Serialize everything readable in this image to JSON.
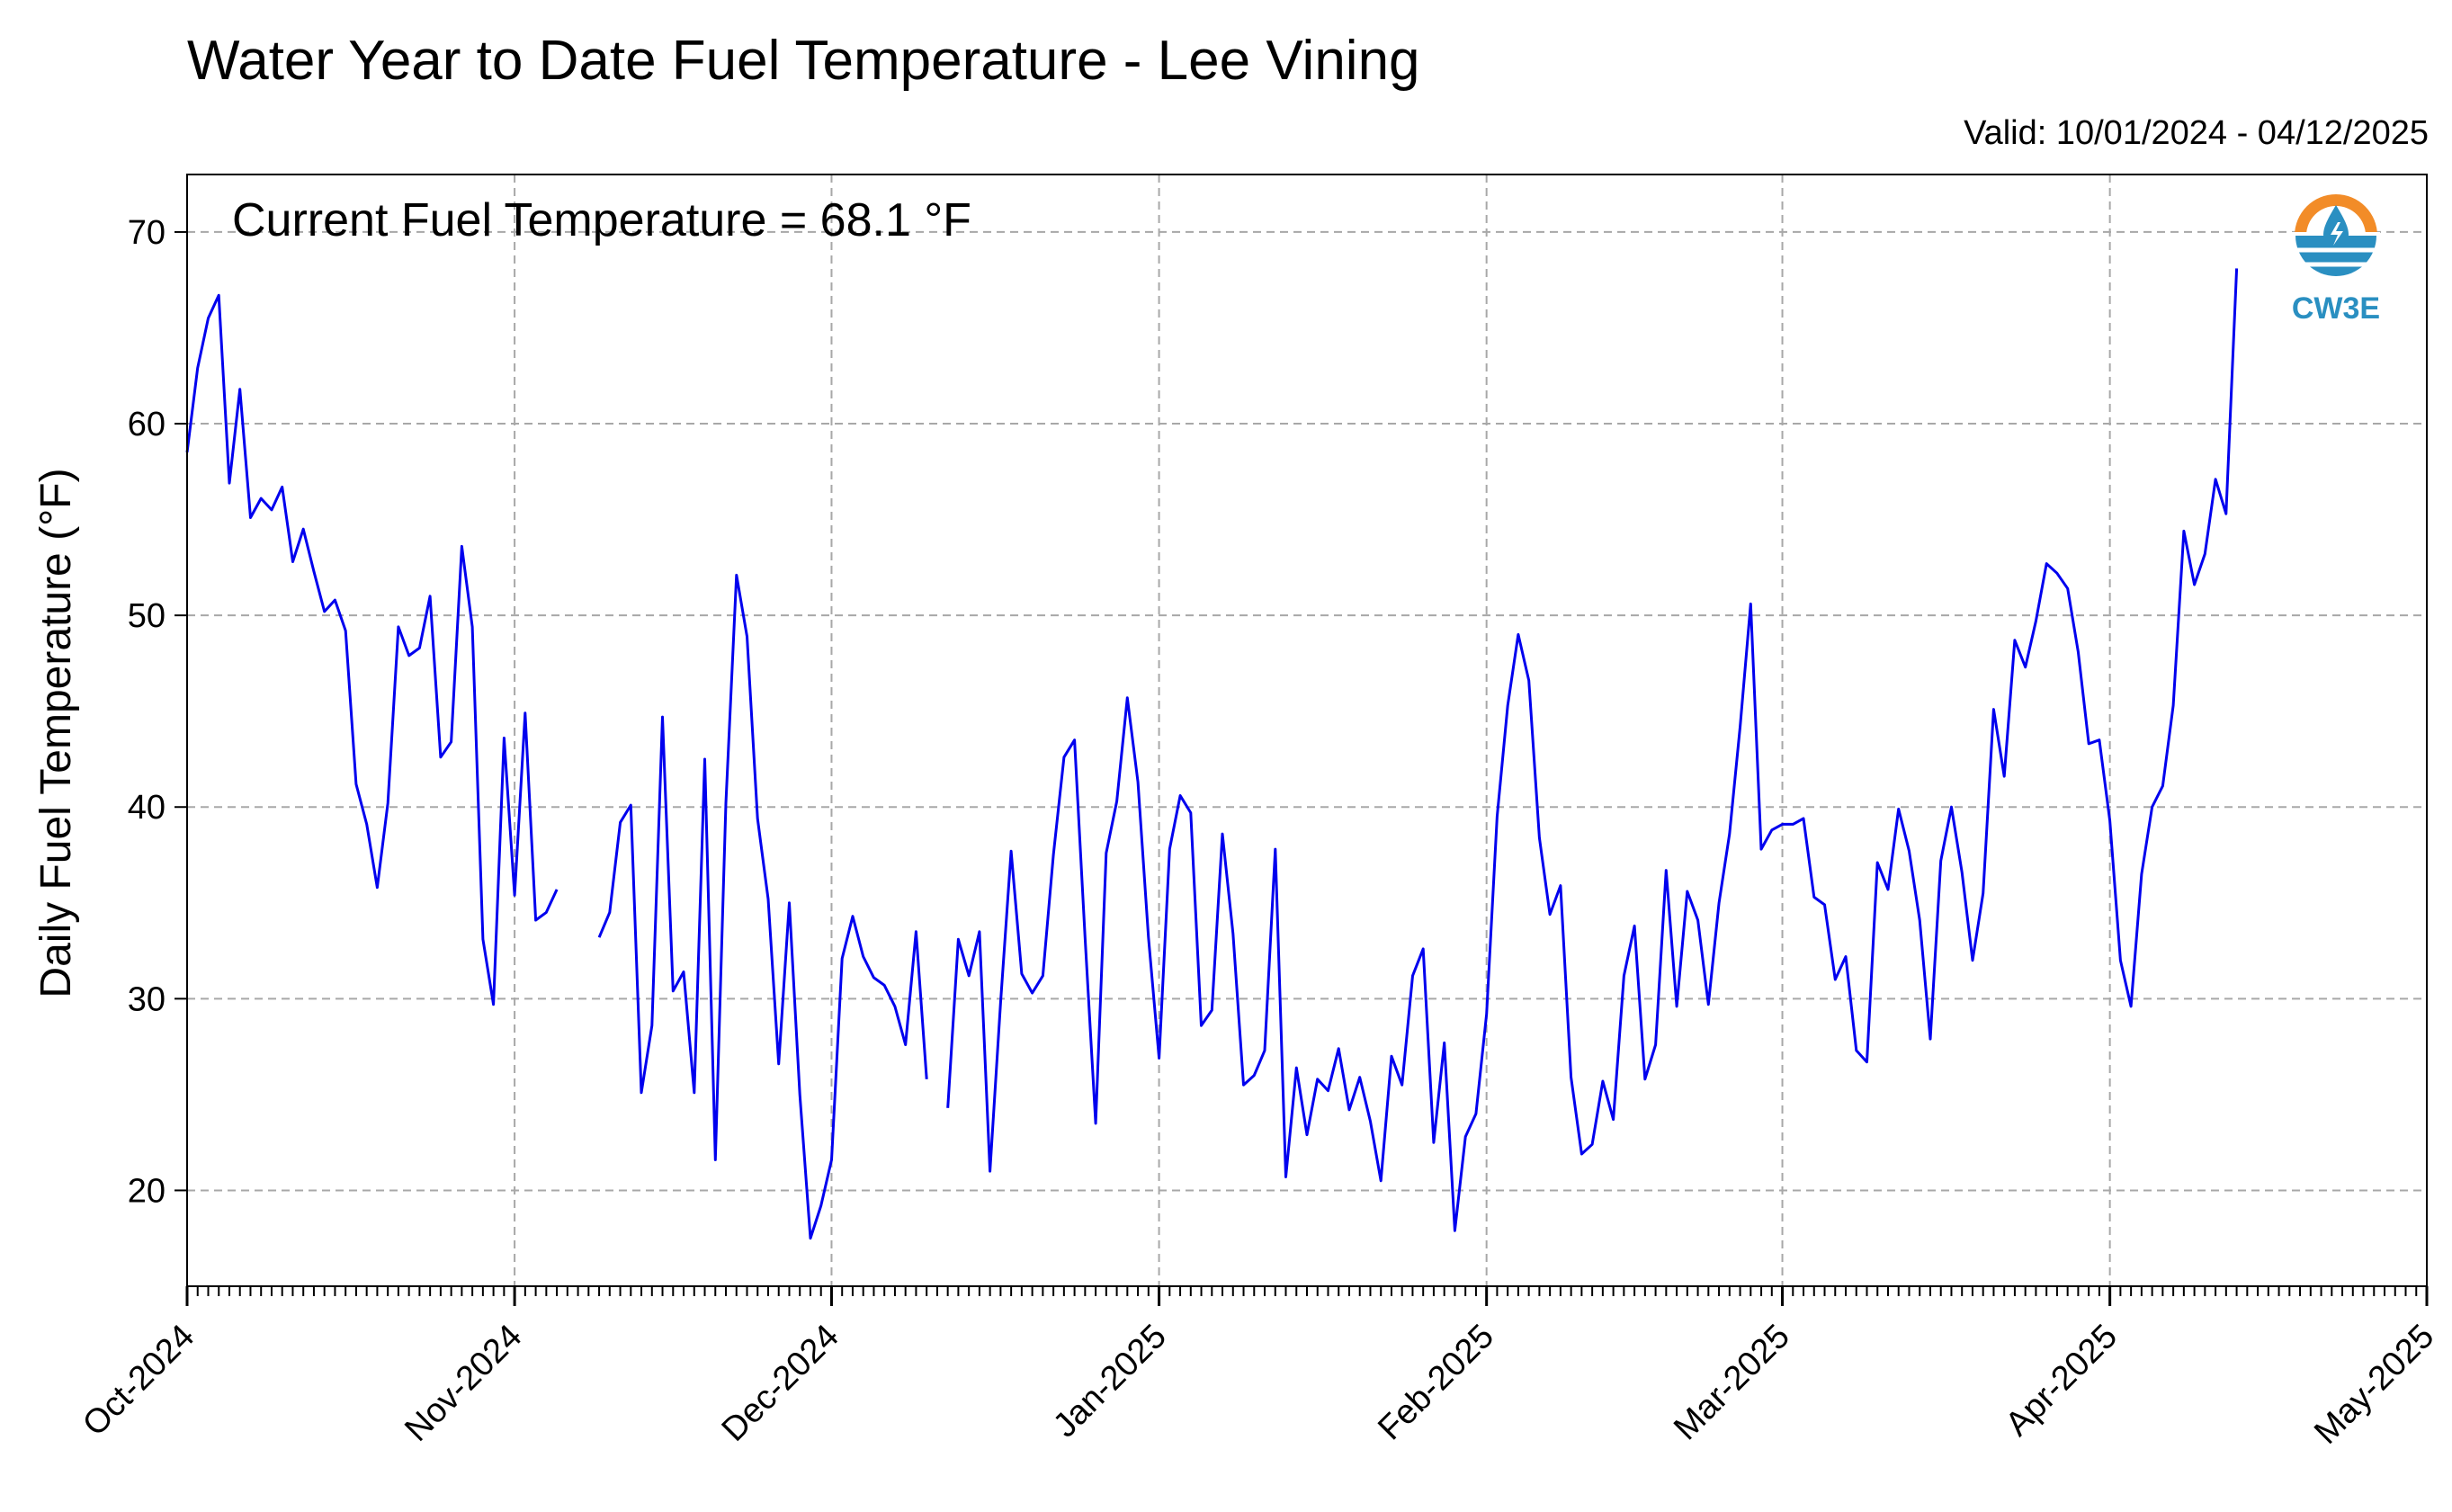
{
  "chart_data": {
    "type": "line",
    "title": "Water Year to Date Fuel Temperature - Lee Vining",
    "subtitle": "Valid: 10/01/2024 - 04/12/2025",
    "annotation": "Current Fuel Temperature = 68.1 °F",
    "ylabel": "Daily Fuel Temperature (°F)",
    "xlabel": "",
    "xlim": [
      "2024-10-01",
      "2025-05-01"
    ],
    "ylim": [
      15,
      73
    ],
    "yticks": [
      20,
      30,
      40,
      50,
      60,
      70
    ],
    "xtick_labels": [
      "Oct-2024",
      "Nov-2024",
      "Dec-2024",
      "Jan-2025",
      "Feb-2025",
      "Mar-2025",
      "Apr-2025",
      "May-2025"
    ],
    "grid": true,
    "line_color": "#0000ee",
    "series": [
      {
        "start_date": "2024-10-01",
        "values": [
          58.5,
          62.9,
          65.5,
          66.7,
          56.9,
          61.8,
          55.1,
          56.1,
          55.5,
          56.7,
          52.8,
          54.5,
          52.3,
          50.2,
          50.8,
          49.2,
          41.2,
          39.1,
          35.8,
          40.2,
          49.4,
          47.9,
          48.3,
          51.0,
          42.6,
          43.4,
          53.6,
          49.4,
          33.1,
          29.7,
          43.6,
          35.4,
          44.9,
          34.1,
          34.5,
          35.7,
          null,
          null,
          null,
          33.2,
          34.5,
          39.2,
          40.1,
          25.1,
          28.6,
          44.7,
          30.4,
          31.4,
          25.1,
          42.5,
          21.6,
          40.2,
          52.1,
          48.9,
          39.4,
          35.2,
          26.6,
          35.0,
          25.0,
          17.5,
          19.2,
          21.6,
          32.1,
          34.3,
          32.2,
          31.1,
          30.7,
          29.6,
          27.6,
          33.5,
          25.8,
          null,
          24.3,
          33.1,
          31.2,
          33.5,
          21.0,
          29.8,
          37.7,
          31.3,
          30.3,
          31.2,
          37.5,
          42.6,
          43.5,
          33.2,
          23.5,
          37.6,
          40.3,
          45.7,
          41.3,
          33.2,
          26.9,
          37.8,
          40.6,
          39.7,
          28.6,
          29.4,
          38.6,
          33.4,
          25.5,
          26.0,
          27.3,
          37.8,
          20.7,
          26.4,
          22.9,
          25.8,
          25.2,
          27.4,
          24.2,
          25.9,
          23.6,
          20.5,
          27.0,
          25.5,
          31.2,
          32.6,
          22.5,
          27.7,
          17.9,
          22.8,
          24.0,
          29.2,
          39.5,
          45.3,
          49.0,
          46.6,
          38.4,
          34.4,
          35.9,
          25.9,
          21.9,
          22.4,
          25.7,
          23.7,
          31.2,
          33.8,
          25.8,
          27.6,
          36.7,
          29.6,
          35.6,
          34.1,
          29.7,
          35.0,
          38.6,
          44.2,
          50.6,
          37.8,
          38.8,
          39.1,
          39.1,
          39.4,
          35.3,
          34.9,
          31.0,
          32.2,
          27.3,
          26.7,
          37.1,
          35.7,
          39.9,
          37.7,
          34.1,
          27.9,
          37.2,
          40.0,
          36.6,
          32.0,
          35.5,
          45.1,
          41.6,
          48.7,
          47.3,
          49.7,
          52.7,
          52.2,
          51.4,
          48.1,
          43.3,
          43.5,
          39.3,
          32.0,
          29.6,
          36.5,
          40.0,
          41.1,
          45.3,
          54.4,
          51.6,
          53.2,
          57.1,
          55.3,
          68.1
        ]
      }
    ]
  },
  "logo": {
    "text": "CW3E",
    "colors": {
      "orange": "#f28c28",
      "blue": "#2a8fc1"
    }
  }
}
